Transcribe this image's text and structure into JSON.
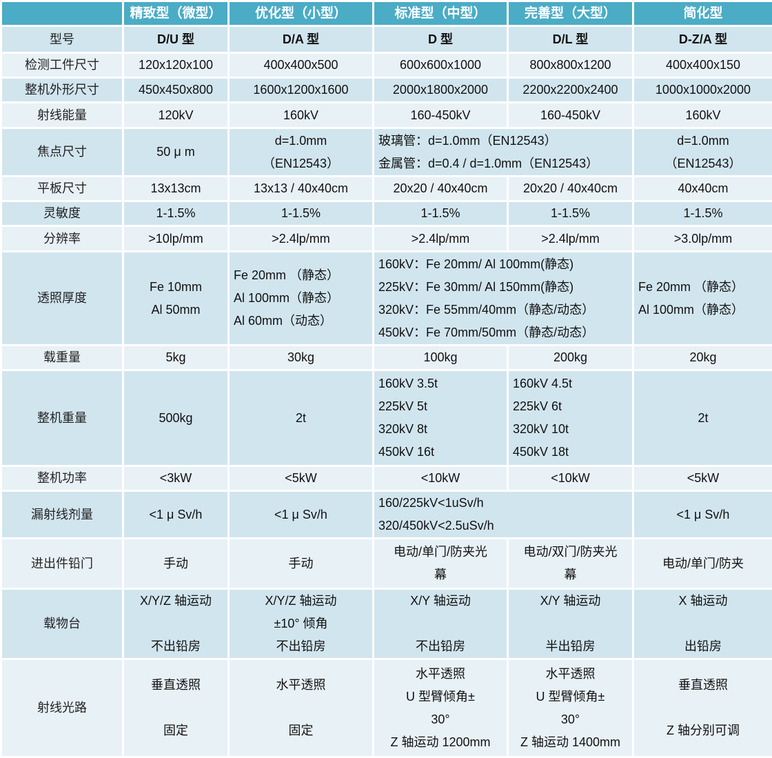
{
  "colors": {
    "header": "#4BACC6",
    "row_dark": "#D1E5EE",
    "row_light": "#E8F1F6"
  },
  "header": [
    "",
    "精致型（微型）",
    "优化型（小型）",
    "标准型（中型）",
    "完善型（大型）",
    "简化型"
  ],
  "rows": [
    {
      "label": "型号",
      "bold": true,
      "cells": [
        {
          "lines": [
            "D/U 型"
          ]
        },
        {
          "lines": [
            "D/A 型"
          ]
        },
        {
          "lines": [
            "D 型"
          ]
        },
        {
          "lines": [
            "D/L 型"
          ]
        },
        {
          "lines": [
            "D-Z/A 型"
          ]
        }
      ]
    },
    {
      "label": "检测工件尺寸",
      "cells": [
        {
          "lines": [
            "120x120x100"
          ]
        },
        {
          "lines": [
            "400x400x500"
          ]
        },
        {
          "lines": [
            "600x600x1000"
          ]
        },
        {
          "lines": [
            "800x800x1200"
          ]
        },
        {
          "lines": [
            "400x400x150"
          ]
        }
      ]
    },
    {
      "label": "整机外形尺寸",
      "cells": [
        {
          "lines": [
            "450x450x800"
          ]
        },
        {
          "lines": [
            "1600x1200x1600"
          ]
        },
        {
          "lines": [
            "2000x1800x2000"
          ]
        },
        {
          "lines": [
            "2200x2200x2400"
          ]
        },
        {
          "lines": [
            "1000x1000x2000"
          ]
        }
      ]
    },
    {
      "label": "射线能量",
      "cells": [
        {
          "lines": [
            "120kV"
          ]
        },
        {
          "lines": [
            "160kV"
          ]
        },
        {
          "lines": [
            "160-450kV"
          ]
        },
        {
          "lines": [
            "160-450kV"
          ]
        },
        {
          "lines": [
            "160kV"
          ]
        }
      ]
    },
    {
      "label": "焦点尺寸",
      "cells": [
        {
          "lines": [
            "50 μ m"
          ]
        },
        {
          "lines": [
            "d=1.0mm",
            "（EN12543）"
          ]
        },
        {
          "span": 2,
          "left": true,
          "lines": [
            "玻璃管：d=1.0mm（EN12543）",
            "金属管：d=0.4 / d=1.0mm（EN12543）"
          ]
        },
        {
          "lines": [
            "d=1.0mm",
            "（EN12543）"
          ]
        }
      ]
    },
    {
      "label": "平板尺寸",
      "cells": [
        {
          "lines": [
            "13x13cm"
          ]
        },
        {
          "lines": [
            "13x13 / 40x40cm"
          ]
        },
        {
          "lines": [
            "20x20 / 40x40cm"
          ]
        },
        {
          "lines": [
            "20x20 / 40x40cm"
          ]
        },
        {
          "lines": [
            "40x40cm"
          ]
        }
      ]
    },
    {
      "label": "灵敏度",
      "cells": [
        {
          "lines": [
            "1-1.5%"
          ]
        },
        {
          "lines": [
            "1-1.5%"
          ]
        },
        {
          "lines": [
            "1-1.5%"
          ]
        },
        {
          "lines": [
            "1-1.5%"
          ]
        },
        {
          "lines": [
            "1-1.5%"
          ]
        }
      ]
    },
    {
      "label": "分辨率",
      "cells": [
        {
          "lines": [
            ">10lp/mm"
          ]
        },
        {
          "lines": [
            ">2.4lp/mm"
          ]
        },
        {
          "lines": [
            ">2.4lp/mm"
          ]
        },
        {
          "lines": [
            ">2.4lp/mm"
          ]
        },
        {
          "lines": [
            ">3.0lp/mm"
          ]
        }
      ]
    },
    {
      "label": "透照厚度",
      "cells": [
        {
          "lines": [
            "Fe 10mm",
            "Al 50mm"
          ]
        },
        {
          "left": true,
          "lines": [
            "Fe 20mm  （静态）",
            "Al 100mm（静态）",
            "Al   60mm（动态）"
          ]
        },
        {
          "span": 2,
          "left": true,
          "lines": [
            "160kV：Fe 20mm/ Al 100mm(静态)",
            "225kV：Fe 30mm/ Al 150mm(静态)",
            "320kV：Fe 55mm/40mm（静态/动态）",
            "450kV：Fe 70mm/50mm（静态/动态）"
          ]
        },
        {
          "left": true,
          "lines": [
            "Fe 20mm  （静态）",
            "Al 100mm（静态）"
          ]
        }
      ]
    },
    {
      "label": "载重量",
      "cells": [
        {
          "lines": [
            "5kg"
          ]
        },
        {
          "lines": [
            "30kg"
          ]
        },
        {
          "lines": [
            "100kg"
          ]
        },
        {
          "lines": [
            "200kg"
          ]
        },
        {
          "lines": [
            "20kg"
          ]
        }
      ]
    },
    {
      "label": "整机重量",
      "cells": [
        {
          "lines": [
            "500kg"
          ]
        },
        {
          "lines": [
            "2t"
          ]
        },
        {
          "left": true,
          "lines": [
            "160kV 3.5t",
            "225kV 5t",
            "320kV 8t",
            "450kV 16t"
          ]
        },
        {
          "left": true,
          "lines": [
            "160kV 4.5t",
            "225kV 6t",
            "320kV 10t",
            "450kV 18t"
          ]
        },
        {
          "lines": [
            "2t"
          ]
        }
      ]
    },
    {
      "label": "整机功率",
      "cells": [
        {
          "lines": [
            "<3kW"
          ]
        },
        {
          "lines": [
            "<5kW"
          ]
        },
        {
          "lines": [
            "<10kW"
          ]
        },
        {
          "lines": [
            "<10kW"
          ]
        },
        {
          "lines": [
            "<5kW"
          ]
        }
      ]
    },
    {
      "label": "漏射线剂量",
      "cells": [
        {
          "lines": [
            "<1 μ Sv/h"
          ]
        },
        {
          "lines": [
            "<1 μ Sv/h"
          ]
        },
        {
          "span": 2,
          "left": true,
          "lines": [
            "160/225kV<1uSv/h",
            "320/450kV<2.5uSv/h"
          ]
        },
        {
          "lines": [
            "<1 μ Sv/h"
          ]
        }
      ]
    },
    {
      "label": "进出件铅门",
      "cells": [
        {
          "lines": [
            "手动"
          ]
        },
        {
          "lines": [
            "手动"
          ]
        },
        {
          "lines": [
            "电动/单门/防夹光",
            "幕"
          ]
        },
        {
          "lines": [
            "电动/双门/防夹光",
            "幕"
          ]
        },
        {
          "lines": [
            "电动/单门/防夹"
          ]
        }
      ]
    },
    {
      "label": "载物台",
      "cells": [
        {
          "lines": [
            "X/Y/Z 轴运动",
            "",
            "不出铅房"
          ]
        },
        {
          "lines": [
            "X/Y/Z 轴运动",
            "±10° 倾角",
            "不出铅房"
          ]
        },
        {
          "lines": [
            "X/Y 轴运动",
            "",
            "不出铅房"
          ]
        },
        {
          "lines": [
            "X/Y 轴运动",
            "",
            "半出铅房"
          ]
        },
        {
          "lines": [
            "X 轴运动",
            "",
            "出铅房"
          ]
        }
      ]
    },
    {
      "label": "射线光路",
      "cells": [
        {
          "lines": [
            "垂直透照",
            "",
            "固定"
          ]
        },
        {
          "lines": [
            "水平透照",
            "",
            "固定"
          ]
        },
        {
          "lines": [
            "水平透照",
            "U 型臂倾角±",
            "30°",
            "Z 轴运动 1200mm"
          ]
        },
        {
          "lines": [
            "水平透照",
            "U 型臂倾角±",
            "30°",
            "Z 轴运动 1400mm"
          ]
        },
        {
          "lines": [
            "垂直透照",
            "",
            "Z 轴分别可调"
          ]
        }
      ]
    }
  ]
}
